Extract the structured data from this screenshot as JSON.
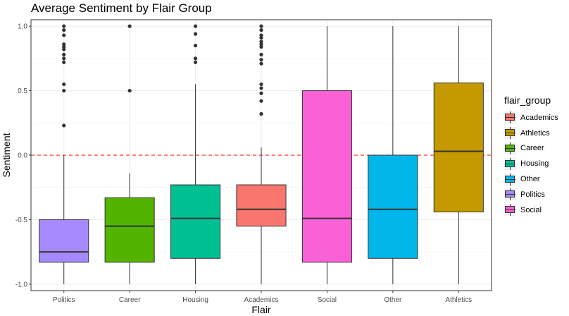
{
  "chart_data": {
    "type": "boxplot",
    "title": "Average Sentiment by Flair Group",
    "xlabel": "Flair",
    "ylabel": "Sentiment",
    "ylim": [
      -1.05,
      1.05
    ],
    "yticks": [
      -1.0,
      -0.5,
      0.0,
      0.5,
      1.0
    ],
    "ytick_labels": [
      "-1.0",
      "-0.5",
      "0.0",
      "0.5",
      "1.0"
    ],
    "reference_line": {
      "y": 0.0,
      "style": "dashed",
      "color": "#ff3333"
    },
    "grid": true,
    "legend_placement": "right",
    "legend_title": "flair_group",
    "legend": [
      {
        "name": "Academics",
        "color": "#f8766d"
      },
      {
        "name": "Athletics",
        "color": "#c49a00"
      },
      {
        "name": "Career",
        "color": "#53b400"
      },
      {
        "name": "Housing",
        "color": "#00c094"
      },
      {
        "name": "Other",
        "color": "#00b6eb"
      },
      {
        "name": "Politics",
        "color": "#a58aff"
      },
      {
        "name": "Social",
        "color": "#fb61d7"
      }
    ],
    "categories": [
      "Politics",
      "Career",
      "Housing",
      "Academics",
      "Social",
      "Other",
      "Athletics"
    ],
    "boxes": [
      {
        "category": "Politics",
        "color": "#a58aff",
        "whisker_low": -1.0,
        "q1": -0.83,
        "median": -0.75,
        "q3": -0.5,
        "whisker_high": 0.0,
        "outliers": [
          0.23,
          0.5,
          0.55,
          0.72,
          0.75,
          0.78,
          0.82,
          0.84,
          0.86,
          0.93,
          0.97,
          1.0
        ]
      },
      {
        "category": "Career",
        "color": "#53b400",
        "whisker_low": -1.0,
        "q1": -0.83,
        "median": -0.55,
        "q3": -0.33,
        "whisker_high": -0.14,
        "outliers": [
          0.5,
          1.0
        ]
      },
      {
        "category": "Housing",
        "color": "#00c094",
        "whisker_low": -1.0,
        "q1": -0.8,
        "median": -0.49,
        "q3": -0.23,
        "whisker_high": 0.55,
        "outliers": [
          0.72,
          0.75,
          0.85,
          0.94,
          1.0
        ]
      },
      {
        "category": "Academics",
        "color": "#f8766d",
        "whisker_low": -1.0,
        "q1": -0.55,
        "median": -0.42,
        "q3": -0.23,
        "whisker_high": 0.06,
        "outliers": [
          0.32,
          0.42,
          0.48,
          0.52,
          0.55,
          0.71,
          0.74,
          0.78,
          0.84,
          0.86,
          0.88,
          0.91,
          0.93,
          0.97,
          1.0
        ]
      },
      {
        "category": "Social",
        "color": "#fb61d7",
        "whisker_low": -1.0,
        "q1": -0.83,
        "median": -0.49,
        "q3": 0.5,
        "whisker_high": 1.0,
        "outliers": []
      },
      {
        "category": "Other",
        "color": "#00b6eb",
        "whisker_low": -1.0,
        "q1": -0.8,
        "median": -0.42,
        "q3": 0.0,
        "whisker_high": 1.0,
        "outliers": []
      },
      {
        "category": "Athletics",
        "color": "#c49a00",
        "whisker_low": -1.0,
        "q1": -0.44,
        "median": 0.03,
        "q3": 0.56,
        "whisker_high": 1.0,
        "outliers": []
      }
    ]
  }
}
